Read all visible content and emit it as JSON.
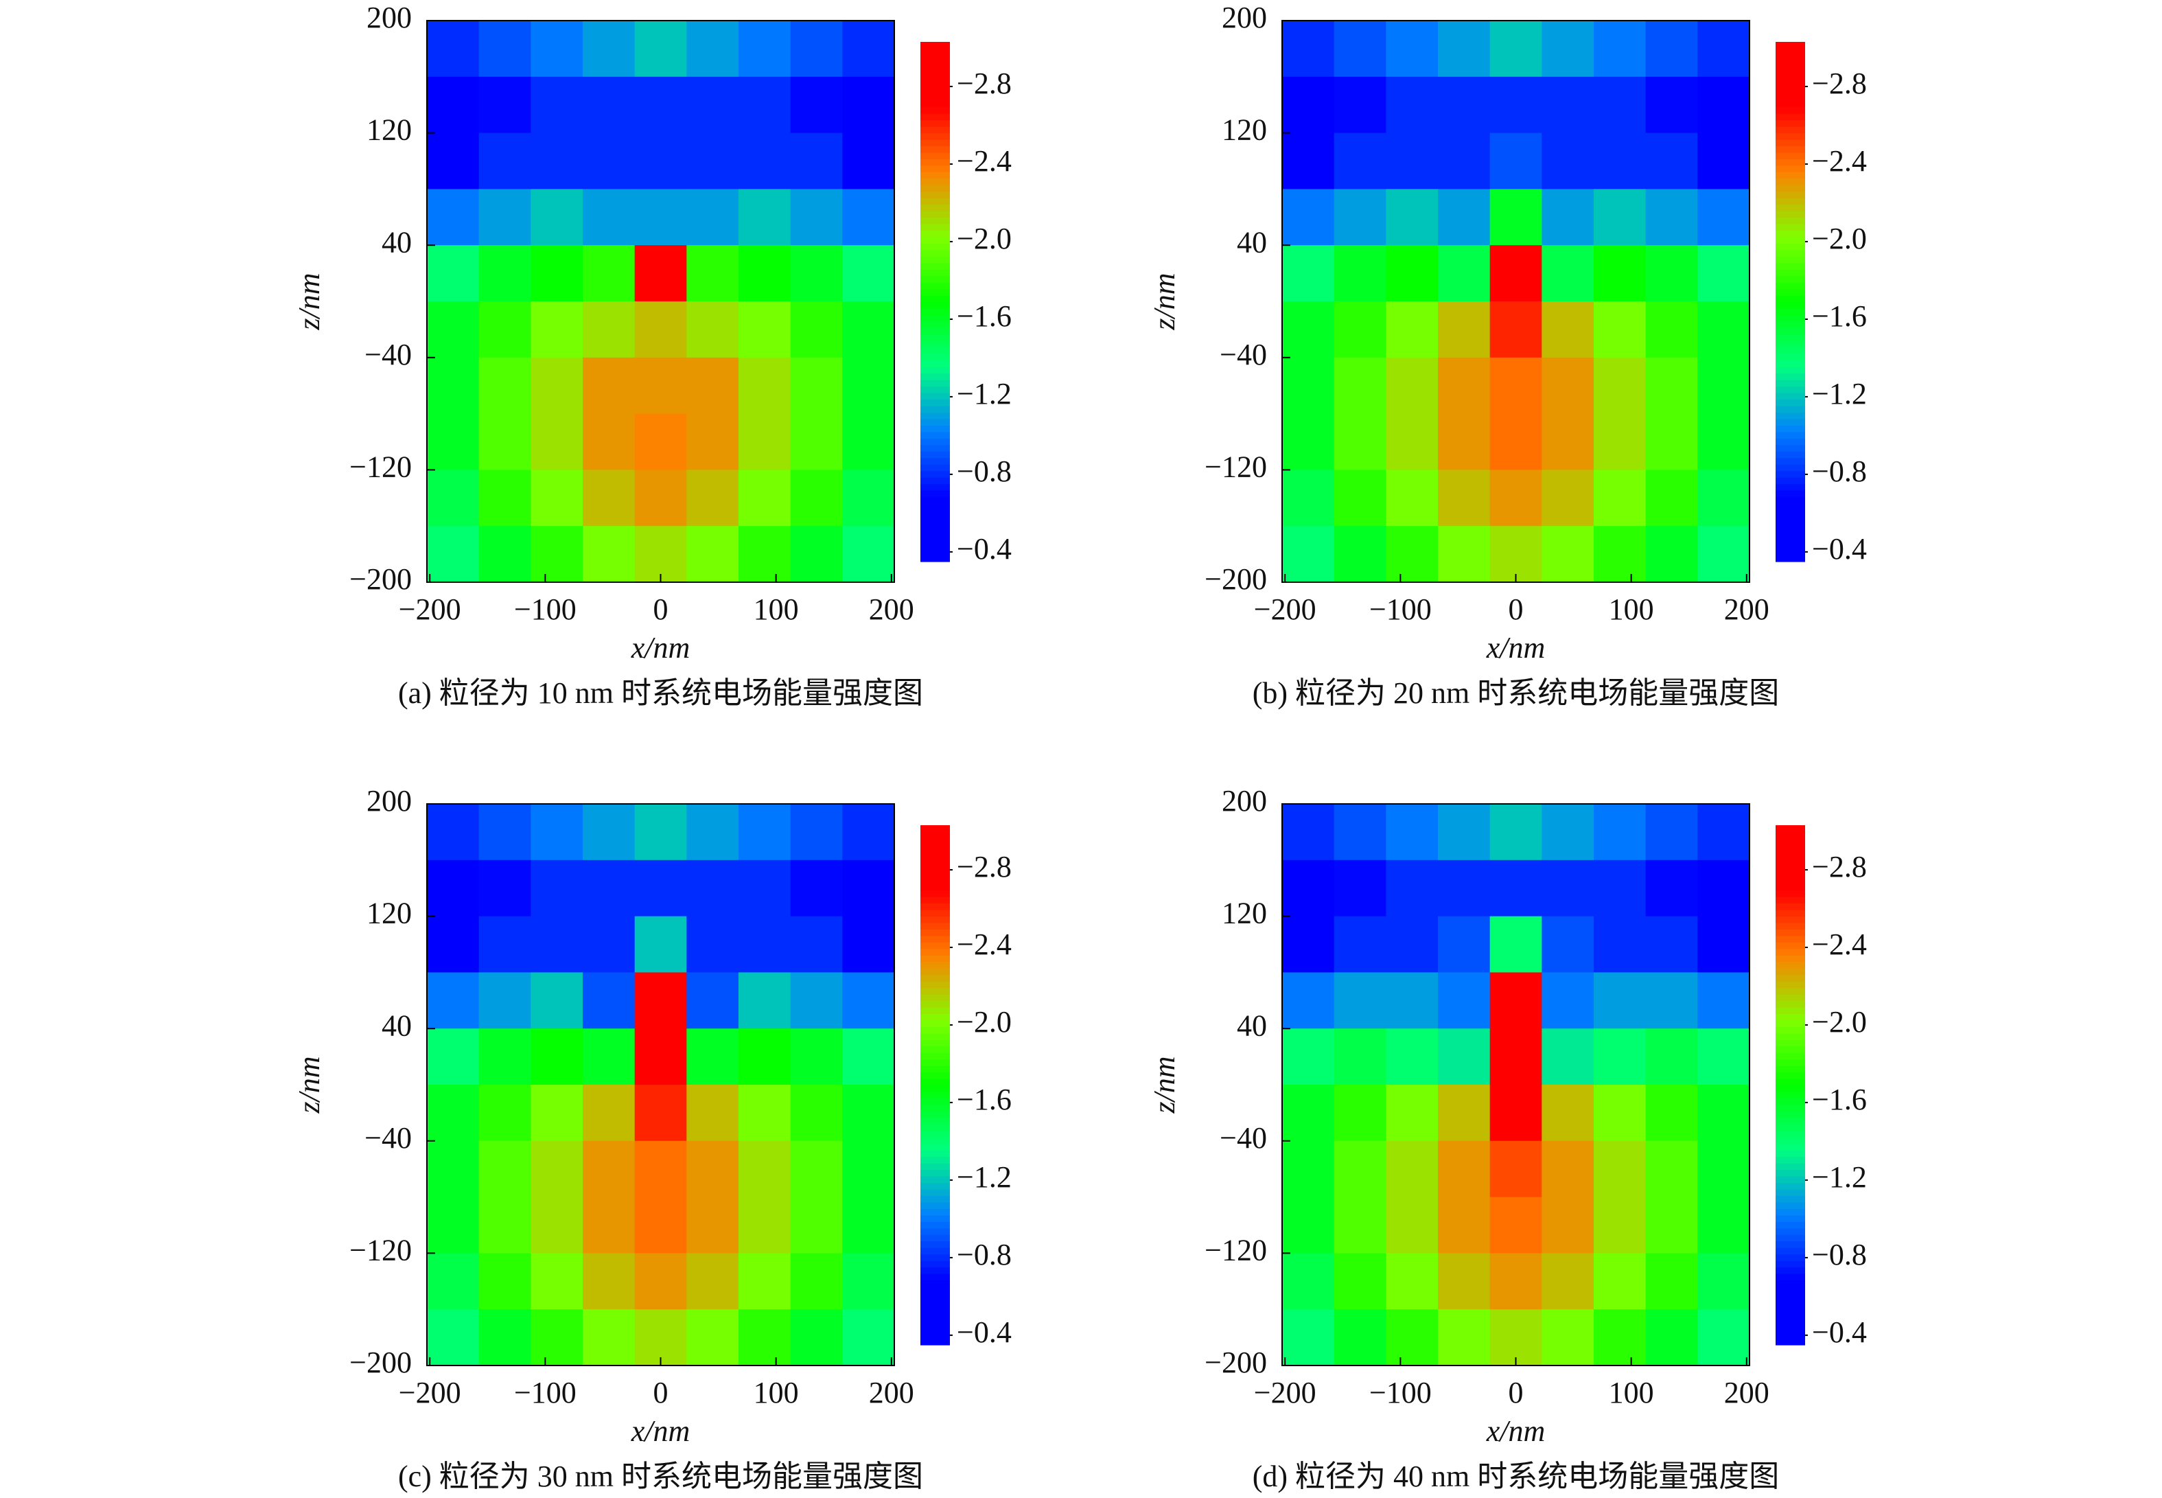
{
  "chart_data": [
    {
      "type": "heatmap",
      "title": "(a) 粒径为 10 nm 时系统电场能量强度图",
      "xlabel": "x/nm",
      "ylabel": "z/nm",
      "x": [
        -180,
        -135,
        -90,
        -45,
        0,
        45,
        90,
        135,
        180
      ],
      "y": [
        180,
        140,
        100,
        60,
        20,
        -20,
        -60,
        -100,
        -140,
        -180
      ],
      "z": [
        [
          -0.8,
          -0.9,
          -1.0,
          -1.1,
          -1.2,
          -1.1,
          -1.0,
          -0.9,
          -0.8
        ],
        [
          -0.5,
          -0.7,
          -0.8,
          -0.8,
          -0.8,
          -0.8,
          -0.8,
          -0.7,
          -0.5
        ],
        [
          -0.6,
          -0.8,
          -0.8,
          -0.8,
          -0.8,
          -0.8,
          -0.8,
          -0.8,
          -0.6
        ],
        [
          -1.0,
          -1.1,
          -1.2,
          -1.1,
          -1.1,
          -1.1,
          -1.2,
          -1.1,
          -1.0
        ],
        [
          -1.4,
          -1.6,
          -1.7,
          -1.8,
          -2.9,
          -1.8,
          -1.7,
          -1.6,
          -1.4
        ],
        [
          -1.6,
          -1.8,
          -2.0,
          -2.1,
          -2.2,
          -2.1,
          -2.0,
          -1.8,
          -1.6
        ],
        [
          -1.6,
          -1.9,
          -2.1,
          -2.3,
          -2.3,
          -2.3,
          -2.1,
          -1.9,
          -1.6
        ],
        [
          -1.6,
          -1.9,
          -2.1,
          -2.3,
          -2.35,
          -2.3,
          -2.1,
          -1.9,
          -1.6
        ],
        [
          -1.5,
          -1.8,
          -2.0,
          -2.2,
          -2.3,
          -2.2,
          -2.0,
          -1.8,
          -1.5
        ],
        [
          -1.4,
          -1.6,
          -1.8,
          -2.0,
          -2.1,
          -2.0,
          -1.8,
          -1.6,
          -1.4
        ]
      ],
      "xlim": [
        -202.5,
        202.5
      ],
      "ylim": [
        -200,
        200
      ],
      "xticks": [
        {
          "value": -200,
          "label": "−200"
        },
        {
          "value": -100,
          "label": "−100"
        },
        0,
        100,
        200
      ],
      "yticks": [
        200,
        120,
        40,
        {
          "value": -40,
          "label": "−40"
        },
        {
          "value": -120,
          "label": "−120"
        },
        {
          "value": -200,
          "label": "−200"
        }
      ],
      "clim": [
        -0.35,
        -3.03
      ],
      "cticks": [
        {
          "value": -2.8,
          "label": "−2.8"
        },
        {
          "value": -2.4,
          "label": "−2.4"
        },
        {
          "value": -2.0,
          "label": "−2.0"
        },
        {
          "value": -1.6,
          "label": "−1.6"
        },
        {
          "value": -1.2,
          "label": "−1.2"
        },
        {
          "value": -0.8,
          "label": "−0.8"
        },
        {
          "value": -0.4,
          "label": "−0.4"
        }
      ]
    },
    {
      "type": "heatmap",
      "title": "(b) 粒径为 20 nm 时系统电场能量强度图",
      "xlabel": "x/nm",
      "ylabel": "z/nm",
      "x": [
        -180,
        -135,
        -90,
        -45,
        0,
        45,
        90,
        135,
        180
      ],
      "y": [
        180,
        140,
        100,
        60,
        20,
        -20,
        -60,
        -100,
        -140,
        -180
      ],
      "z": [
        [
          -0.8,
          -0.9,
          -1.0,
          -1.1,
          -1.2,
          -1.1,
          -1.0,
          -0.9,
          -0.8
        ],
        [
          -0.5,
          -0.7,
          -0.8,
          -0.8,
          -0.8,
          -0.8,
          -0.8,
          -0.7,
          -0.5
        ],
        [
          -0.6,
          -0.8,
          -0.8,
          -0.8,
          -0.9,
          -0.8,
          -0.8,
          -0.8,
          -0.6
        ],
        [
          -1.0,
          -1.1,
          -1.2,
          -1.1,
          -1.6,
          -1.1,
          -1.2,
          -1.1,
          -1.0
        ],
        [
          -1.4,
          -1.6,
          -1.7,
          -1.5,
          -3.0,
          -1.5,
          -1.7,
          -1.6,
          -1.4
        ],
        [
          -1.6,
          -1.8,
          -2.0,
          -2.2,
          -2.6,
          -2.2,
          -2.0,
          -1.8,
          -1.6
        ],
        [
          -1.6,
          -1.9,
          -2.1,
          -2.3,
          -2.4,
          -2.3,
          -2.1,
          -1.9,
          -1.6
        ],
        [
          -1.6,
          -1.9,
          -2.1,
          -2.3,
          -2.4,
          -2.3,
          -2.1,
          -1.9,
          -1.6
        ],
        [
          -1.5,
          -1.8,
          -2.0,
          -2.2,
          -2.3,
          -2.2,
          -2.0,
          -1.8,
          -1.5
        ],
        [
          -1.4,
          -1.6,
          -1.8,
          -2.0,
          -2.1,
          -2.0,
          -1.8,
          -1.6,
          -1.4
        ]
      ],
      "xlim": [
        -202.5,
        202.5
      ],
      "ylim": [
        -200,
        200
      ],
      "xticks": [
        {
          "value": -200,
          "label": "−200"
        },
        {
          "value": -100,
          "label": "−100"
        },
        0,
        100,
        200
      ],
      "yticks": [
        200,
        120,
        40,
        {
          "value": -40,
          "label": "−40"
        },
        {
          "value": -120,
          "label": "−120"
        },
        {
          "value": -200,
          "label": "−200"
        }
      ],
      "clim": [
        -0.35,
        -3.03
      ],
      "cticks": [
        {
          "value": -2.8,
          "label": "−2.8"
        },
        {
          "value": -2.4,
          "label": "−2.4"
        },
        {
          "value": -2.0,
          "label": "−2.0"
        },
        {
          "value": -1.6,
          "label": "−1.6"
        },
        {
          "value": -1.2,
          "label": "−1.2"
        },
        {
          "value": -0.8,
          "label": "−0.8"
        },
        {
          "value": -0.4,
          "label": "−0.4"
        }
      ]
    },
    {
      "type": "heatmap",
      "title": "(c) 粒径为 30 nm 时系统电场能量强度图",
      "xlabel": "x/nm",
      "ylabel": "z/nm",
      "x": [
        -180,
        -135,
        -90,
        -45,
        0,
        45,
        90,
        135,
        180
      ],
      "y": [
        180,
        140,
        100,
        60,
        20,
        -20,
        -60,
        -100,
        -140,
        -180
      ],
      "z": [
        [
          -0.8,
          -0.9,
          -1.0,
          -1.1,
          -1.2,
          -1.1,
          -1.0,
          -0.9,
          -0.8
        ],
        [
          -0.5,
          -0.7,
          -0.8,
          -0.8,
          -0.8,
          -0.8,
          -0.8,
          -0.7,
          -0.5
        ],
        [
          -0.6,
          -0.8,
          -0.8,
          -0.8,
          -1.2,
          -0.8,
          -0.8,
          -0.8,
          -0.6
        ],
        [
          -1.0,
          -1.1,
          -1.2,
          -0.9,
          -2.9,
          -0.9,
          -1.2,
          -1.1,
          -1.0
        ],
        [
          -1.4,
          -1.6,
          -1.7,
          -1.6,
          -2.9,
          -1.6,
          -1.7,
          -1.6,
          -1.4
        ],
        [
          -1.6,
          -1.8,
          -2.0,
          -2.2,
          -2.6,
          -2.2,
          -2.0,
          -1.8,
          -1.6
        ],
        [
          -1.6,
          -1.9,
          -2.1,
          -2.3,
          -2.4,
          -2.3,
          -2.1,
          -1.9,
          -1.6
        ],
        [
          -1.6,
          -1.9,
          -2.1,
          -2.3,
          -2.4,
          -2.3,
          -2.1,
          -1.9,
          -1.6
        ],
        [
          -1.5,
          -1.8,
          -2.0,
          -2.2,
          -2.3,
          -2.2,
          -2.0,
          -1.8,
          -1.5
        ],
        [
          -1.4,
          -1.6,
          -1.8,
          -2.0,
          -2.1,
          -2.0,
          -1.8,
          -1.6,
          -1.4
        ]
      ],
      "xlim": [
        -202.5,
        202.5
      ],
      "ylim": [
        -200,
        200
      ],
      "xticks": [
        {
          "value": -200,
          "label": "−200"
        },
        {
          "value": -100,
          "label": "−100"
        },
        0,
        100,
        200
      ],
      "yticks": [
        200,
        120,
        40,
        {
          "value": -40,
          "label": "−40"
        },
        {
          "value": -120,
          "label": "−120"
        },
        {
          "value": -200,
          "label": "−200"
        }
      ],
      "clim": [
        -0.35,
        -3.03
      ],
      "cticks": [
        {
          "value": -2.8,
          "label": "−2.8"
        },
        {
          "value": -2.4,
          "label": "−2.4"
        },
        {
          "value": -2.0,
          "label": "−2.0"
        },
        {
          "value": -1.6,
          "label": "−1.6"
        },
        {
          "value": -1.2,
          "label": "−1.2"
        },
        {
          "value": -0.8,
          "label": "−0.8"
        },
        {
          "value": -0.4,
          "label": "−0.4"
        }
      ]
    },
    {
      "type": "heatmap",
      "title": "(d) 粒径为 40 nm 时系统电场能量强度图",
      "xlabel": "x/nm",
      "ylabel": "z/nm",
      "x": [
        -180,
        -135,
        -90,
        -45,
        0,
        45,
        90,
        135,
        180
      ],
      "y": [
        180,
        140,
        100,
        60,
        20,
        -20,
        -60,
        -100,
        -140,
        -180
      ],
      "z": [
        [
          -0.8,
          -0.9,
          -1.0,
          -1.1,
          -1.2,
          -1.1,
          -1.0,
          -0.9,
          -0.8
        ],
        [
          -0.5,
          -0.7,
          -0.8,
          -0.8,
          -0.8,
          -0.8,
          -0.8,
          -0.7,
          -0.5
        ],
        [
          -0.6,
          -0.8,
          -0.8,
          -0.9,
          -1.4,
          -0.9,
          -0.8,
          -0.8,
          -0.6
        ],
        [
          -1.0,
          -1.1,
          -1.1,
          -1.0,
          -2.9,
          -1.0,
          -1.1,
          -1.1,
          -1.0
        ],
        [
          -1.4,
          -1.5,
          -1.4,
          -1.3,
          -2.9,
          -1.3,
          -1.4,
          -1.5,
          -1.4
        ],
        [
          -1.6,
          -1.8,
          -2.0,
          -2.2,
          -2.7,
          -2.2,
          -2.0,
          -1.8,
          -1.6
        ],
        [
          -1.6,
          -1.9,
          -2.1,
          -2.3,
          -2.5,
          -2.3,
          -2.1,
          -1.9,
          -1.6
        ],
        [
          -1.6,
          -1.9,
          -2.1,
          -2.3,
          -2.4,
          -2.3,
          -2.1,
          -1.9,
          -1.6
        ],
        [
          -1.5,
          -1.8,
          -2.0,
          -2.2,
          -2.3,
          -2.2,
          -2.0,
          -1.8,
          -1.5
        ],
        [
          -1.4,
          -1.6,
          -1.8,
          -2.0,
          -2.1,
          -2.0,
          -1.8,
          -1.6,
          -1.4
        ]
      ],
      "xlim": [
        -202.5,
        202.5
      ],
      "ylim": [
        -200,
        200
      ],
      "xticks": [
        {
          "value": -200,
          "label": "−200"
        },
        {
          "value": -100,
          "label": "−100"
        },
        0,
        100,
        200
      ],
      "yticks": [
        200,
        120,
        40,
        {
          "value": -40,
          "label": "−40"
        },
        {
          "value": -120,
          "label": "−120"
        },
        {
          "value": -200,
          "label": "−200"
        }
      ],
      "clim": [
        -0.35,
        -3.03
      ],
      "cticks": [
        {
          "value": -2.8,
          "label": "−2.8"
        },
        {
          "value": -2.4,
          "label": "−2.4"
        },
        {
          "value": -2.0,
          "label": "−2.0"
        },
        {
          "value": -1.6,
          "label": "−1.6"
        },
        {
          "value": -1.2,
          "label": "−1.2"
        },
        {
          "value": -0.8,
          "label": "−0.8"
        },
        {
          "value": -0.4,
          "label": "−0.4"
        }
      ]
    }
  ]
}
